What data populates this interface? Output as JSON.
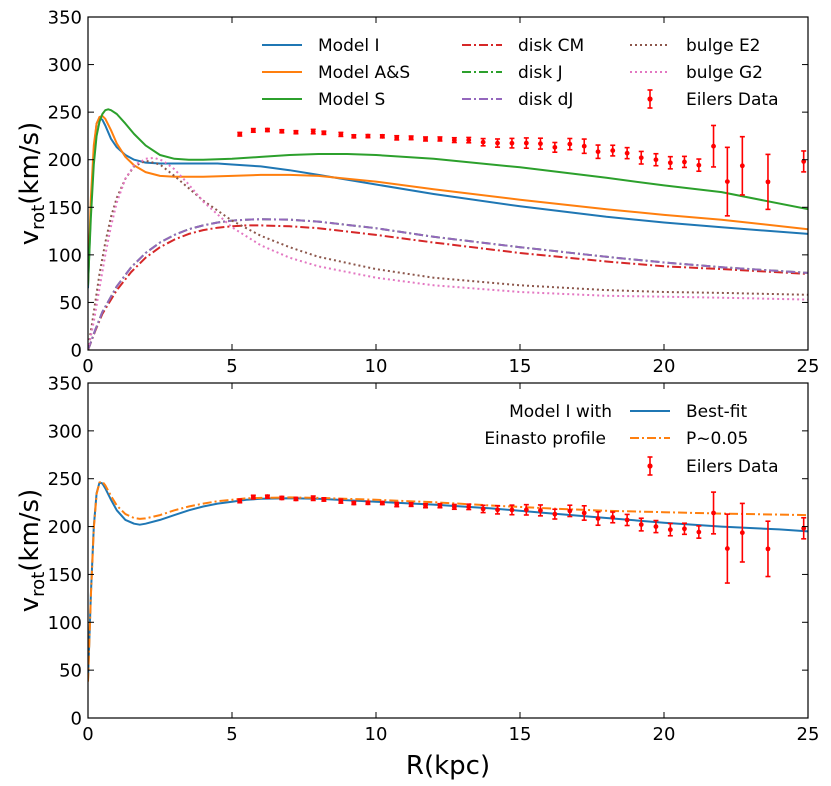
{
  "chart_data": [
    {
      "type": "line",
      "panel": "top",
      "ylabel": "v",
      "ylabel_sub": "rot",
      "ylabel_unit": "(km/s)",
      "xlabel": "",
      "xlim": [
        0,
        25
      ],
      "ylim": [
        0,
        350
      ],
      "xticks": [
        0,
        5,
        10,
        15,
        20,
        25
      ],
      "yticks": [
        0,
        50,
        100,
        150,
        200,
        250,
        300,
        350
      ],
      "legend_location": "upper-right, three columns",
      "series": [
        {
          "name": "Model I",
          "color": "#1f77b4",
          "style": "solid",
          "x": [
            0,
            0.1,
            0.2,
            0.3,
            0.4,
            0.5,
            0.6,
            0.8,
            1,
            1.3,
            1.6,
            2,
            2.5,
            3,
            3.5,
            4,
            4.5,
            5,
            6,
            7,
            8,
            10,
            12,
            15,
            18,
            20,
            22,
            25
          ],
          "y": [
            65,
            150,
            210,
            238,
            244,
            242,
            236,
            222,
            213,
            205,
            200,
            197,
            196,
            196,
            196,
            196,
            196,
            195,
            193,
            189,
            184,
            174,
            164,
            151,
            140,
            134,
            129,
            122
          ]
        },
        {
          "name": "Model A&S",
          "color": "#ff7f0e",
          "style": "solid",
          "x": [
            0,
            0.1,
            0.2,
            0.3,
            0.4,
            0.5,
            0.6,
            0.8,
            1,
            1.3,
            1.6,
            2,
            2.5,
            3,
            4,
            5,
            6,
            7,
            8,
            10,
            12,
            15,
            18,
            20,
            22,
            25
          ],
          "y": [
            70,
            160,
            215,
            238,
            245,
            246,
            243,
            231,
            217,
            203,
            194,
            187,
            183,
            182,
            182,
            183,
            184,
            184,
            183,
            177,
            169,
            158,
            148,
            142,
            137,
            127
          ]
        },
        {
          "name": "Model S",
          "color": "#2ca02c",
          "style": "solid",
          "x": [
            0,
            0.1,
            0.2,
            0.3,
            0.4,
            0.5,
            0.6,
            0.7,
            0.8,
            1,
            1.3,
            1.6,
            2,
            2.5,
            3,
            3.5,
            4,
            5,
            6,
            7,
            8,
            9,
            10,
            12,
            15,
            18,
            20,
            22,
            25
          ],
          "y": [
            68,
            140,
            195,
            225,
            240,
            248,
            252,
            253,
            252,
            248,
            238,
            227,
            215,
            205,
            201,
            200,
            200,
            201,
            203,
            205,
            206,
            206,
            205,
            201,
            192,
            181,
            173,
            166,
            148
          ]
        },
        {
          "name": "disk CM",
          "color": "#d62728",
          "style": "dashdot",
          "x": [
            0,
            0.25,
            0.5,
            1,
            1.5,
            2,
            2.5,
            3,
            3.5,
            4,
            4.5,
            5,
            5.5,
            6,
            7,
            8,
            10,
            12,
            15,
            18,
            20,
            22,
            25
          ],
          "y": [
            0,
            20,
            38,
            63,
            82,
            97,
            108,
            116,
            122,
            126,
            128.5,
            130,
            131,
            131,
            130,
            128,
            121,
            113,
            102,
            93,
            88,
            85,
            80
          ]
        },
        {
          "name": "disk J",
          "color": "#2ca02c",
          "style": "dashdot",
          "x": [
            0,
            0.25,
            0.5,
            1,
            1.5,
            2,
            2.5,
            3,
            3.5,
            4,
            4.5,
            5,
            5.5,
            6,
            7,
            8,
            10,
            12,
            15,
            18,
            20,
            22,
            25
          ],
          "y": [
            0,
            21,
            40,
            67,
            87,
            102,
            113,
            121,
            127,
            131,
            134,
            136,
            137,
            137.5,
            137,
            135,
            128,
            119,
            108,
            98,
            92,
            87,
            81
          ]
        },
        {
          "name": "disk dJ",
          "color": "#9467bd",
          "style": "dashdot",
          "x": [
            0,
            0.25,
            0.5,
            1,
            1.5,
            2,
            2.5,
            3,
            3.5,
            4,
            4.5,
            5,
            5.5,
            6,
            7,
            8,
            10,
            12,
            15,
            18,
            20,
            22,
            25
          ],
          "y": [
            0,
            21,
            40,
            67,
            87,
            102,
            113,
            121,
            127,
            131,
            134,
            136,
            137,
            137.5,
            137,
            135,
            128,
            119,
            108,
            98,
            92,
            87,
            81
          ]
        },
        {
          "name": "bulge E2",
          "color": "#8c564b",
          "style": "dotted",
          "x": [
            0,
            0.2,
            0.4,
            0.6,
            0.8,
            1,
            1.3,
            1.6,
            2,
            2.5,
            3,
            3.5,
            4,
            5,
            6,
            7,
            8,
            10,
            12,
            15,
            18,
            20,
            22,
            25
          ],
          "y": [
            0,
            40,
            80,
            113,
            140,
            160,
            180,
            193,
            199,
            195,
            183,
            170,
            157,
            136,
            120,
            108,
            98,
            85,
            76,
            68,
            63,
            61,
            60,
            58
          ]
        },
        {
          "name": "bulge G2",
          "color": "#e377c2",
          "style": "dotted",
          "x": [
            0,
            0.2,
            0.4,
            0.6,
            0.8,
            1,
            1.3,
            1.6,
            2,
            2.3,
            2.6,
            3,
            3.5,
            4,
            5,
            6,
            7,
            8,
            10,
            12,
            15,
            18,
            20,
            22,
            25
          ],
          "y": [
            0,
            30,
            65,
            100,
            130,
            155,
            180,
            194,
            201,
            202,
            199,
            190,
            174,
            156,
            129,
            110,
            97,
            88,
            76,
            68,
            61,
            57,
            56,
            55,
            53
          ]
        }
      ],
      "data_series": {
        "name": "Eilers Data",
        "color": "#ff0000",
        "x": [
          5.27,
          5.74,
          6.23,
          6.73,
          7.22,
          7.82,
          8.19,
          8.78,
          9.23,
          9.72,
          10.22,
          10.72,
          11.22,
          11.72,
          12.22,
          12.72,
          13.22,
          13.72,
          14.22,
          14.72,
          15.22,
          15.71,
          16.21,
          16.73,
          17.23,
          17.71,
          18.22,
          18.72,
          19.21,
          19.72,
          20.22,
          20.71,
          21.21,
          21.72,
          22.2,
          22.72,
          23.61,
          24.85
        ],
        "y": [
          226.8,
          230.8,
          231.2,
          229.9,
          228.9,
          229.6,
          228.3,
          226.6,
          224.6,
          224.8,
          224.6,
          223.0,
          223.0,
          221.8,
          221.8,
          220.6,
          220.6,
          218.4,
          217.5,
          217.4,
          217.5,
          216.9,
          213.0,
          216.4,
          214.2,
          208.4,
          209.6,
          206.9,
          202.1,
          200.0,
          196.8,
          197.7,
          194.3,
          214.2,
          177.0,
          193.6,
          176.7,
          198.2
        ],
        "err": [
          1.9,
          1.9,
          1.6,
          1.6,
          1.6,
          2.3,
          1.7,
          2.1,
          1.6,
          1.6,
          1.6,
          2.2,
          1.9,
          2.1,
          2.1,
          2.5,
          2.8,
          3.8,
          4.3,
          5.0,
          5.4,
          5.7,
          5.1,
          5.9,
          7.5,
          7.0,
          5.6,
          5.8,
          6.6,
          6.3,
          6.4,
          5.8,
          6.4,
          21.8,
          36.0,
          30.6,
          28.9,
          11.0
        ]
      }
    },
    {
      "type": "line",
      "panel": "bottom",
      "ylabel": "v",
      "ylabel_sub": "rot",
      "ylabel_unit": "(km/s)",
      "xlabel": "R(kpc)",
      "xlim": [
        0,
        25
      ],
      "ylim": [
        0,
        350
      ],
      "xticks": [
        0,
        5,
        10,
        15,
        20,
        25
      ],
      "yticks": [
        0,
        50,
        100,
        150,
        200,
        250,
        300,
        350
      ],
      "legend_title_line1": "Model I with",
      "legend_title_line2": "Einasto profile",
      "legend_location": "upper-right",
      "series": [
        {
          "name": "Best-fit",
          "color": "#1f77b4",
          "style": "solid",
          "x": [
            0,
            0.1,
            0.2,
            0.3,
            0.4,
            0.5,
            0.6,
            0.8,
            1,
            1.3,
            1.6,
            1.8,
            2,
            2.5,
            3,
            3.5,
            4,
            4.5,
            5,
            5.5,
            6,
            7,
            8,
            10,
            12,
            14,
            16,
            18,
            20,
            22,
            24,
            25
          ],
          "y": [
            40,
            130,
            200,
            235,
            246,
            245,
            240,
            228,
            217,
            207,
            203,
            202,
            203,
            207,
            212,
            217,
            221,
            224,
            226,
            228,
            229,
            229.5,
            229,
            226,
            223,
            219,
            214,
            209,
            204,
            200,
            197,
            195
          ]
        },
        {
          "name": "P~0.05",
          "color": "#ff7f0e",
          "style": "dashdot",
          "x": [
            0,
            0.1,
            0.2,
            0.3,
            0.4,
            0.5,
            0.6,
            0.8,
            1,
            1.3,
            1.6,
            1.8,
            2,
            2.5,
            3,
            3.5,
            4,
            4.5,
            5,
            5.5,
            6,
            7,
            8,
            10,
            12,
            14,
            16,
            18,
            20,
            22,
            24,
            25
          ],
          "y": [
            38,
            128,
            198,
            234,
            246,
            247,
            243,
            232,
            222,
            213,
            209,
            208,
            208.5,
            212,
            217,
            221,
            224,
            226.5,
            228,
            229.5,
            230,
            230.5,
            230,
            228,
            225.5,
            222,
            219,
            216.5,
            215,
            213.5,
            212.5,
            212
          ]
        }
      ],
      "data_series": {
        "name": "Eilers Data",
        "color": "#ff0000",
        "x": [
          5.27,
          5.74,
          6.23,
          6.73,
          7.22,
          7.82,
          8.19,
          8.78,
          9.23,
          9.72,
          10.22,
          10.72,
          11.22,
          11.72,
          12.22,
          12.72,
          13.22,
          13.72,
          14.22,
          14.72,
          15.22,
          15.71,
          16.21,
          16.73,
          17.23,
          17.71,
          18.22,
          18.72,
          19.21,
          19.72,
          20.22,
          20.71,
          21.21,
          21.72,
          22.2,
          22.72,
          23.61,
          24.85
        ],
        "y": [
          226.8,
          230.8,
          231.2,
          229.9,
          228.9,
          229.6,
          228.3,
          226.6,
          224.6,
          224.8,
          224.6,
          223.0,
          223.0,
          221.8,
          221.8,
          220.6,
          220.6,
          218.4,
          217.5,
          217.4,
          217.5,
          216.9,
          213.0,
          216.4,
          214.2,
          208.4,
          209.6,
          206.9,
          202.1,
          200.0,
          196.8,
          197.7,
          194.3,
          214.2,
          177.0,
          193.6,
          176.7,
          198.2
        ],
        "err": [
          1.9,
          1.9,
          1.6,
          1.6,
          1.6,
          2.3,
          1.7,
          2.1,
          1.6,
          1.6,
          1.6,
          2.2,
          1.9,
          2.1,
          2.1,
          2.5,
          2.8,
          3.8,
          4.3,
          5.0,
          5.4,
          5.7,
          5.1,
          5.9,
          7.5,
          7.0,
          5.6,
          5.8,
          6.6,
          6.3,
          6.4,
          5.8,
          6.4,
          21.8,
          36.0,
          30.6,
          28.9,
          11.0
        ]
      }
    }
  ]
}
